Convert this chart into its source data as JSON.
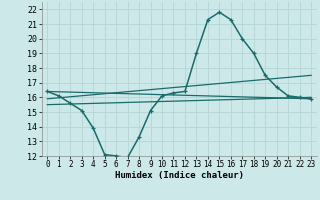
{
  "xlabel": "Humidex (Indice chaleur)",
  "xlim": [
    -0.5,
    23.5
  ],
  "ylim": [
    12,
    22.5
  ],
  "yticks": [
    12,
    13,
    14,
    15,
    16,
    17,
    18,
    19,
    20,
    21,
    22
  ],
  "xticks": [
    0,
    1,
    2,
    3,
    4,
    5,
    6,
    7,
    8,
    9,
    10,
    11,
    12,
    13,
    14,
    15,
    16,
    17,
    18,
    19,
    20,
    21,
    22,
    23
  ],
  "background_color": "#cde8e8",
  "grid_color": "#b8d8d8",
  "line_color": "#1a6b6b",
  "series1_x": [
    0,
    1,
    2,
    3,
    4,
    5,
    6,
    7,
    8,
    9,
    10,
    11,
    12,
    13,
    14,
    15,
    16,
    17,
    18,
    19,
    20,
    21,
    22,
    23
  ],
  "series1_y": [
    16.4,
    16.1,
    15.6,
    15.1,
    13.9,
    12.1,
    12.0,
    11.9,
    13.3,
    15.1,
    16.1,
    16.3,
    16.4,
    19.0,
    21.3,
    21.8,
    21.3,
    20.0,
    19.0,
    17.5,
    16.7,
    16.1,
    16.0,
    15.9
  ],
  "series2_x": [
    0,
    23
  ],
  "series2_y": [
    16.4,
    15.9
  ],
  "series3_x": [
    0,
    23
  ],
  "series3_y": [
    15.9,
    17.5
  ],
  "series4_x": [
    0,
    23
  ],
  "series4_y": [
    15.5,
    16.0
  ]
}
